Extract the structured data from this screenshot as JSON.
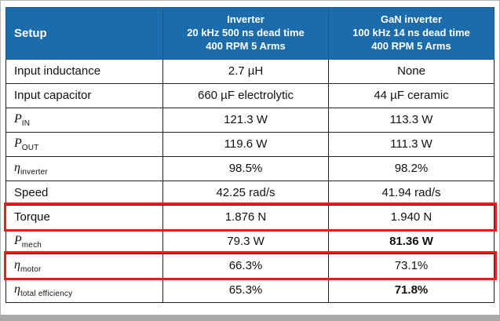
{
  "colors": {
    "header_bg": "#1a6cad",
    "highlight_red": "#e02318",
    "grid": "#222222"
  },
  "table": {
    "header": {
      "setup": "Setup",
      "inverter": {
        "line1": "Inverter",
        "line2": "20 kHz 500 ns dead time",
        "line3": "400 RPM 5 Arms"
      },
      "gan": {
        "line1": "GaN inverter",
        "line2": "100 kHz 14 ns dead time",
        "line3": "400 RPM 5 Arms"
      }
    },
    "rows": [
      {
        "label": {
          "main": "Input inductance",
          "sub": ""
        },
        "inverter": "2.7 µH",
        "gan": "None"
      },
      {
        "label": {
          "main": "Input capacitor",
          "sub": ""
        },
        "inverter": "660 µF electrolytic",
        "gan": "44 µF ceramic"
      },
      {
        "label": {
          "main": "P",
          "sub": "IN"
        },
        "inverter": "121.3 W",
        "gan": "113.3 W"
      },
      {
        "label": {
          "main": "P",
          "sub": "OUT"
        },
        "inverter": "119.6 W",
        "gan": "111.3 W"
      },
      {
        "label": {
          "main": "η",
          "sub": "inverter"
        },
        "inverter": "98.5%",
        "gan": "98.2%"
      },
      {
        "label": {
          "main": "Speed",
          "sub": ""
        },
        "inverter": "42.25 rad/s",
        "gan": "41.94 rad/s"
      },
      {
        "label": {
          "main": "Torque",
          "sub": ""
        },
        "inverter": "1.876 N",
        "gan": "1.940 N"
      },
      {
        "label": {
          "main": "P",
          "sub": "mech"
        },
        "inverter": "79.3 W",
        "gan": "81.36 W"
      },
      {
        "label": {
          "main": "η",
          "sub": "motor"
        },
        "inverter": "66.3%",
        "gan": "73.1%"
      },
      {
        "label": {
          "main": "η",
          "sub": "total efficiency"
        },
        "inverter": "65.3%",
        "gan": "71.8%"
      }
    ]
  },
  "chart_data": {
    "type": "table",
    "title": "Inverter vs GaN inverter comparison",
    "columns": [
      "Setup",
      "Inverter 20 kHz 500 ns dead time 400 RPM 5 Arms",
      "GaN inverter 100 kHz 14 ns dead time 400 RPM 5 Arms"
    ],
    "rows": [
      [
        "Input inductance",
        "2.7 µH",
        "None"
      ],
      [
        "Input capacitor",
        "660 µF electrolytic",
        "44 µF ceramic"
      ],
      [
        "P_IN",
        "121.3 W",
        "113.3 W"
      ],
      [
        "P_OUT",
        "119.6 W",
        "111.3 W"
      ],
      [
        "η_inverter",
        "98.5%",
        "98.2%"
      ],
      [
        "Speed",
        "42.25 rad/s",
        "41.94 rad/s"
      ],
      [
        "Torque",
        "1.876 N",
        "1.940 N"
      ],
      [
        "P_mech",
        "79.3 W",
        "81.36 W"
      ],
      [
        "η_motor",
        "66.3%",
        "73.1%"
      ],
      [
        "η_total efficiency",
        "65.3%",
        "71.8%"
      ]
    ],
    "highlighted_rows": [
      "Torque",
      "η_motor"
    ],
    "bold_values": [
      "81.36 W",
      "71.8%"
    ]
  }
}
